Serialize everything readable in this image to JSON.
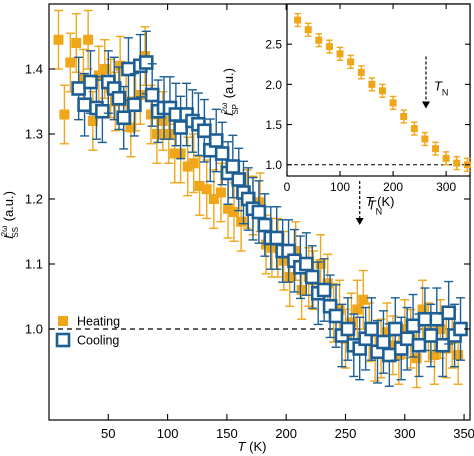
{
  "chart_data": [
    {
      "id": "main",
      "type": "scatter",
      "xlabel": {
        "var": "T",
        "unit": "(K)"
      },
      "ylabel": {
        "var": "I",
        "sup": "2ω",
        "sub": "SS",
        "unit": "(a.u.)"
      },
      "xlim": [
        0,
        355
      ],
      "ylim": [
        0.86,
        1.5
      ],
      "xticks": [
        50,
        100,
        150,
        200,
        250,
        300,
        350
      ],
      "yticks": [
        1.0,
        1.1,
        1.2,
        1.3,
        1.4
      ],
      "ytick_labels": [
        "1.0",
        "1.1",
        "1.2",
        "1.3",
        "1.4"
      ],
      "reference_line": {
        "y": 1.0,
        "style": "dashed"
      },
      "annotation": {
        "var": "T",
        "sub": "N",
        "x": 262,
        "y": 1.16
      },
      "legend": {
        "position": "lower-left"
      },
      "series": [
        {
          "name": "Heating",
          "marker": "filled-square",
          "color": "#F0A619",
          "error": 0.045,
          "points": [
            [
              8,
              1.445
            ],
            [
              13,
              1.33
            ],
            [
              18,
              1.41
            ],
            [
              23,
              1.44
            ],
            [
              29,
              1.385
            ],
            [
              33,
              1.445
            ],
            [
              37,
              1.32
            ],
            [
              42,
              1.39
            ],
            [
              47,
              1.4
            ],
            [
              52,
              1.37
            ],
            [
              56,
              1.35
            ],
            [
              60,
              1.405
            ],
            [
              65,
              1.35
            ],
            [
              69,
              1.31
            ],
            [
              73,
              1.35
            ],
            [
              77,
              1.36
            ],
            [
              81,
              1.42
            ],
            [
              86,
              1.33
            ],
            [
              91,
              1.3
            ],
            [
              96,
              1.32
            ],
            [
              101,
              1.3
            ],
            [
              106,
              1.27
            ],
            [
              111,
              1.27
            ],
            [
              117,
              1.25
            ],
            [
              122,
              1.255
            ],
            [
              127,
              1.22
            ],
            [
              133,
              1.215
            ],
            [
              139,
              1.2
            ],
            [
              145,
              1.21
            ],
            [
              151,
              1.185
            ],
            [
              156,
              1.18
            ],
            [
              162,
              1.165
            ],
            [
              167,
              1.2
            ],
            [
              172,
              1.19
            ],
            [
              178,
              1.195
            ],
            [
              183,
              1.13
            ],
            [
              188,
              1.125
            ],
            [
              193,
              1.125
            ],
            [
              198,
              1.105
            ],
            [
              203,
              1.08
            ],
            [
              208,
              1.12
            ],
            [
              213,
              1.06
            ],
            [
              219,
              1.08
            ],
            [
              223,
              1.075
            ],
            [
              229,
              1.1
            ],
            [
              235,
              1.07
            ],
            [
              240,
              1.025
            ],
            [
              245,
              1.03
            ],
            [
              250,
              0.985
            ],
            [
              255,
              1.01
            ],
            [
              260,
              1.03
            ],
            [
              265,
              1.045
            ],
            [
              270,
              0.995
            ],
            [
              275,
              0.965
            ],
            [
              280,
              0.97
            ],
            [
              285,
              0.995
            ],
            [
              290,
              0.975
            ],
            [
              295,
              0.96
            ],
            [
              300,
              1.0
            ],
            [
              305,
              0.985
            ],
            [
              310,
              0.955
            ],
            [
              315,
              1.03
            ],
            [
              320,
              0.995
            ],
            [
              325,
              0.96
            ],
            [
              330,
              1.0
            ],
            [
              335,
              0.97
            ],
            [
              340,
              0.985
            ],
            [
              345,
              0.96
            ]
          ]
        },
        {
          "name": "Cooling",
          "marker": "open-square",
          "color": "#1D5F95",
          "error": 0.048,
          "points": [
            [
              25,
              1.37
            ],
            [
              30,
              1.345
            ],
            [
              35,
              1.38
            ],
            [
              40,
              1.34
            ],
            [
              45,
              1.335
            ],
            [
              50,
              1.38
            ],
            [
              55,
              1.37
            ],
            [
              59,
              1.355
            ],
            [
              63,
              1.325
            ],
            [
              67,
              1.4
            ],
            [
              72,
              1.345
            ],
            [
              77,
              1.405
            ],
            [
              82,
              1.41
            ],
            [
              87,
              1.36
            ],
            [
              92,
              1.335
            ],
            [
              97,
              1.34
            ],
            [
              102,
              1.34
            ],
            [
              107,
              1.33
            ],
            [
              111,
              1.31
            ],
            [
              116,
              1.33
            ],
            [
              121,
              1.32
            ],
            [
              126,
              1.315
            ],
            [
              131,
              1.305
            ],
            [
              136,
              1.275
            ],
            [
              141,
              1.29
            ],
            [
              146,
              1.27
            ],
            [
              151,
              1.24
            ],
            [
              155,
              1.25
            ],
            [
              160,
              1.23
            ],
            [
              164,
              1.21
            ],
            [
              168,
              1.2
            ],
            [
              172,
              1.185
            ],
            [
              177,
              1.18
            ],
            [
              182,
              1.16
            ],
            [
              187,
              1.14
            ],
            [
              192,
              1.14
            ],
            [
              197,
              1.12
            ],
            [
              202,
              1.12
            ],
            [
              207,
              1.105
            ],
            [
              212,
              1.095
            ],
            [
              217,
              1.1
            ],
            [
              222,
              1.08
            ],
            [
              227,
              1.055
            ],
            [
              232,
              1.06
            ],
            [
              237,
              1.035
            ],
            [
              242,
              1.02
            ],
            [
              247,
              0.99
            ],
            [
              252,
              1.0
            ],
            [
              257,
              0.975
            ],
            [
              262,
              0.97
            ],
            [
              267,
              0.985
            ],
            [
              272,
              1.0
            ],
            [
              277,
              0.965
            ],
            [
              282,
              0.98
            ],
            [
              287,
              0.96
            ],
            [
              292,
              1.0
            ],
            [
              297,
              0.97
            ],
            [
              302,
              0.985
            ],
            [
              307,
              1.005
            ],
            [
              312,
              0.975
            ],
            [
              317,
              1.015
            ],
            [
              322,
              0.99
            ],
            [
              327,
              1.015
            ],
            [
              332,
              0.975
            ],
            [
              337,
              1.025
            ],
            [
              342,
              0.99
            ],
            [
              347,
              1.0
            ]
          ]
        }
      ]
    },
    {
      "id": "inset",
      "type": "scatter",
      "xlabel": {
        "var": "T",
        "unit": "(K)"
      },
      "ylabel": {
        "var": "I",
        "sup": "2ω",
        "sub": "SP",
        "unit": "(a.u.)"
      },
      "xlim": [
        0,
        345
      ],
      "ylim": [
        0.86,
        3.0
      ],
      "xticks": [
        0,
        100,
        200,
        300
      ],
      "yticks": [
        1.0,
        1.5,
        2.0,
        2.5
      ],
      "ytick_labels": [
        "1.0",
        "1.5",
        "2.0",
        "2.5"
      ],
      "reference_line": {
        "y": 1.0,
        "style": "dashed"
      },
      "annotation": {
        "var": "T",
        "sub": "N",
        "x": 262,
        "y": 1.7
      },
      "series": [
        {
          "name": "",
          "marker": "filled-square",
          "color": "#F0A619",
          "error": 0.08,
          "points": [
            [
              20,
              2.8
            ],
            [
              40,
              2.68
            ],
            [
              60,
              2.55
            ],
            [
              80,
              2.47
            ],
            [
              100,
              2.38
            ],
            [
              120,
              2.28
            ],
            [
              140,
              2.15
            ],
            [
              160,
              2.0
            ],
            [
              180,
              1.92
            ],
            [
              200,
              1.77
            ],
            [
              220,
              1.6
            ],
            [
              240,
              1.45
            ],
            [
              260,
              1.32
            ],
            [
              280,
              1.2
            ],
            [
              300,
              1.08
            ],
            [
              320,
              1.02
            ],
            [
              340,
              1.0
            ]
          ]
        }
      ]
    }
  ]
}
